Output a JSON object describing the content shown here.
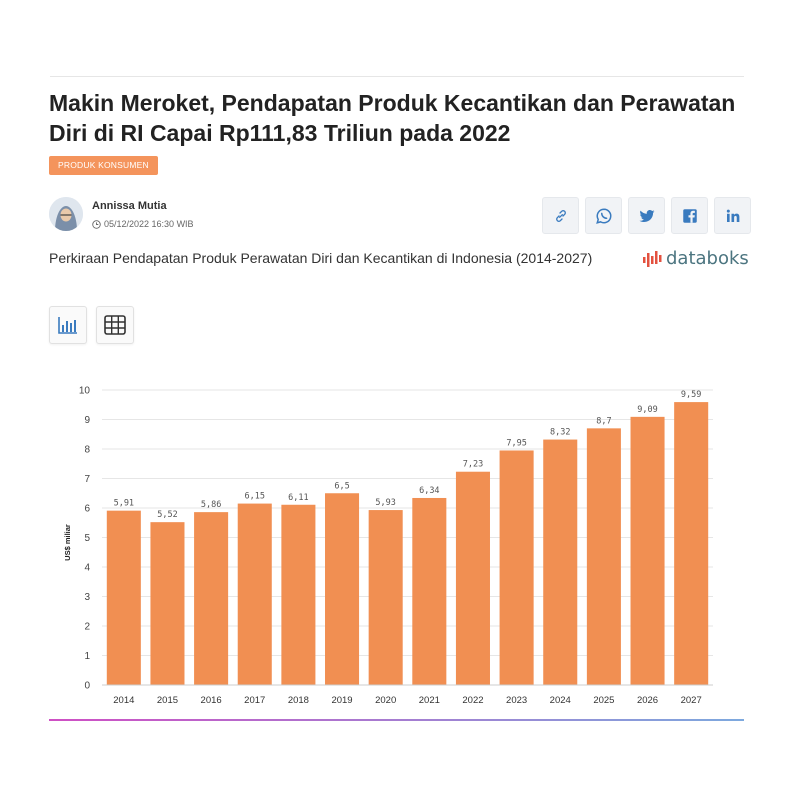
{
  "article": {
    "title": "Makin Meroket, Pendapatan Produk Kecantikan dan Perawatan Diri di RI Capai Rp111,83 Triliun pada 2022",
    "category": "PRODUK KONSUMEN",
    "author": "Annissa Mutia",
    "date": "05/12/2022 16:30 WIB"
  },
  "share": {
    "icons": [
      "link-icon",
      "whatsapp-icon",
      "twitter-icon",
      "facebook-icon",
      "linkedin-icon"
    ]
  },
  "chart_header": {
    "title": "Perkiraan Pendapatan Produk Perawatan Diri dan Kecantikan di Indonesia (2014-2027)",
    "brand": "databoks",
    "view_icons": [
      "bar-chart-icon",
      "table-grid-icon"
    ]
  },
  "colors": {
    "bar": "#f18f52",
    "accent": "#f4945c",
    "brand": "#4c7580",
    "gradient_start": "#cf4fc4",
    "gradient_end": "#7da9de"
  },
  "chart_data": {
    "type": "bar",
    "title": "Perkiraan Pendapatan Produk Perawatan Diri dan Kecantikan di Indonesia (2014-2027)",
    "categories": [
      "2014",
      "2015",
      "2016",
      "2017",
      "2018",
      "2019",
      "2020",
      "2021",
      "2022",
      "2023",
      "2024",
      "2025",
      "2026",
      "2027"
    ],
    "values": [
      5.91,
      5.52,
      5.86,
      6.15,
      6.11,
      6.5,
      5.93,
      6.34,
      7.23,
      7.95,
      8.32,
      8.7,
      9.09,
      9.59
    ],
    "value_labels": [
      "5,91",
      "5,52",
      "5,86",
      "6,15",
      "6,11",
      "6,5",
      "5,93",
      "6,34",
      "7,23",
      "7,95",
      "8,32",
      "8,7",
      "9,09",
      "9,59"
    ],
    "xlabel": "",
    "ylabel": "US$ miliar",
    "ylim": [
      0,
      10
    ],
    "yticks": [
      0,
      1,
      2,
      3,
      4,
      5,
      6,
      7,
      8,
      9,
      10
    ],
    "grid": true,
    "legend": "none"
  }
}
